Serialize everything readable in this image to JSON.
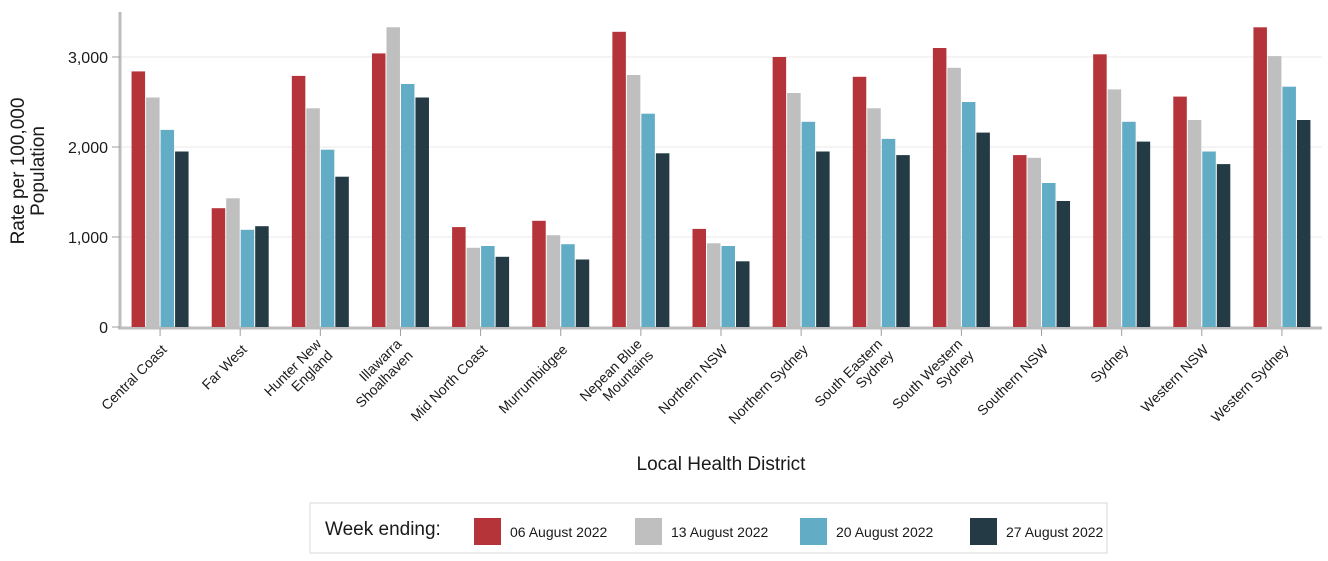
{
  "chart_data": {
    "type": "bar",
    "xlabel": "Local Health District",
    "ylabel_lines": [
      "Rate per 100,000",
      "Population"
    ],
    "ylim": [
      0,
      3500
    ],
    "yticks": [
      0,
      1000,
      2000,
      3000
    ],
    "ytick_labels": [
      "0",
      "1,000",
      "2,000",
      "3,000"
    ],
    "grid": true,
    "legend_position": "bottom",
    "legend_title": "Week ending:",
    "categories": [
      [
        "Central Coast"
      ],
      [
        "Far West"
      ],
      [
        "Hunter New",
        "England"
      ],
      [
        "Illawarra",
        "Shoalhaven"
      ],
      [
        "Mid North Coast"
      ],
      [
        "Murrumbidgee"
      ],
      [
        "Nepean Blue",
        "Mountains"
      ],
      [
        "Northern NSW"
      ],
      [
        "Northern Sydney"
      ],
      [
        "South Eastern",
        "Sydney"
      ],
      [
        "South Western",
        "Sydney"
      ],
      [
        "Southern NSW"
      ],
      [
        "Sydney"
      ],
      [
        "Western NSW"
      ],
      [
        "Western Sydney"
      ]
    ],
    "series": [
      {
        "name": "06 August 2022",
        "color": "#b5343a",
        "values": [
          2840,
          1320,
          2790,
          3040,
          1110,
          1180,
          3280,
          1090,
          3000,
          2780,
          3100,
          1910,
          3030,
          2560,
          3330
        ]
      },
      {
        "name": "13 August 2022",
        "color": "#bfbfbf",
        "values": [
          2550,
          1430,
          2430,
          3330,
          880,
          1020,
          2800,
          930,
          2600,
          2430,
          2880,
          1880,
          2640,
          2300,
          3010
        ]
      },
      {
        "name": "20 August 2022",
        "color": "#62acc6",
        "values": [
          2190,
          1080,
          1970,
          2700,
          900,
          920,
          2370,
          900,
          2280,
          2090,
          2500,
          1600,
          2280,
          1950,
          2670
        ]
      },
      {
        "name": "27 August 2022",
        "color": "#243b46",
        "values": [
          1950,
          1120,
          1670,
          2550,
          780,
          750,
          1930,
          730,
          1950,
          1910,
          2160,
          1400,
          2060,
          1810,
          2300
        ]
      }
    ]
  }
}
